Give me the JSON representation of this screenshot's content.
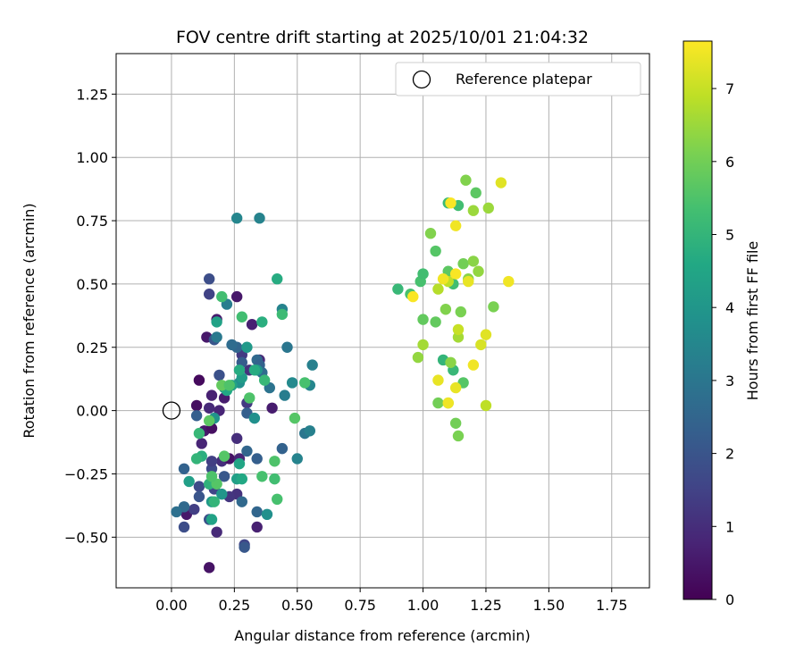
{
  "chart_data": {
    "type": "scatter",
    "title": "FOV centre drift starting at 2025/10/01 21:04:32",
    "xlabel": "Angular distance from reference (arcmin)",
    "ylabel": "Rotation from reference (arcmin)",
    "xlim": [
      -0.22,
      1.9
    ],
    "ylim": [
      -0.7,
      1.41
    ],
    "xticks": [
      0.0,
      0.25,
      0.5,
      0.75,
      1.0,
      1.25,
      1.5,
      1.75
    ],
    "xtick_labels": [
      "0.00",
      "0.25",
      "0.50",
      "0.75",
      "1.00",
      "1.25",
      "1.50",
      "1.75"
    ],
    "yticks": [
      -0.5,
      -0.25,
      0.0,
      0.25,
      0.5,
      0.75,
      1.0,
      1.25
    ],
    "ytick_labels": [
      "−0.50",
      "−0.25",
      "0.00",
      "0.25",
      "0.50",
      "0.75",
      "1.00",
      "1.25"
    ],
    "grid": true,
    "legend": {
      "placement": "top-right",
      "label": "Reference platepar"
    },
    "reference_point": {
      "x": 0.0,
      "y": 0.0,
      "marker": "open-circle"
    },
    "colorbar": {
      "label": "Hours from first FF file",
      "range": [
        0,
        7.65
      ],
      "ticks": [
        0,
        1,
        2,
        3,
        4,
        5,
        6,
        7
      ],
      "tick_labels": [
        "0",
        "1",
        "2",
        "3",
        "4",
        "5",
        "6",
        "7"
      ],
      "colormap": "viridis"
    },
    "series": [
      {
        "points": [
          {
            "x": 0.15,
            "y": -0.62,
            "t": 0.4
          },
          {
            "x": 0.11,
            "y": 0.12,
            "t": 0.2
          },
          {
            "x": 0.1,
            "y": 0.02,
            "t": 0.3
          },
          {
            "x": 0.14,
            "y": 0.29,
            "t": 0.5
          },
          {
            "x": 0.18,
            "y": 0.36,
            "t": 0.6
          },
          {
            "x": 0.16,
            "y": 0.06,
            "t": 0.7
          },
          {
            "x": 0.15,
            "y": 0.01,
            "t": 0.9
          },
          {
            "x": 0.13,
            "y": -0.08,
            "t": 0.5
          },
          {
            "x": 0.12,
            "y": -0.13,
            "t": 0.8
          },
          {
            "x": 0.16,
            "y": -0.07,
            "t": 0.3
          },
          {
            "x": 0.2,
            "y": -0.2,
            "t": 1.0
          },
          {
            "x": 0.23,
            "y": -0.19,
            "t": 0.4
          },
          {
            "x": 0.18,
            "y": -0.48,
            "t": 0.9
          },
          {
            "x": 0.06,
            "y": -0.41,
            "t": 0.5
          },
          {
            "x": 0.19,
            "y": 0.0,
            "t": 0.8
          },
          {
            "x": 0.21,
            "y": 0.05,
            "t": 0.6
          },
          {
            "x": 0.26,
            "y": 0.45,
            "t": 0.5
          },
          {
            "x": 0.32,
            "y": 0.34,
            "t": 0.7
          },
          {
            "x": 0.28,
            "y": 0.22,
            "t": 1.3
          },
          {
            "x": 0.31,
            "y": 0.16,
            "t": 1.1
          },
          {
            "x": 0.35,
            "y": 0.2,
            "t": 0.9
          },
          {
            "x": 0.4,
            "y": 0.01,
            "t": 0.6
          },
          {
            "x": 0.27,
            "y": -0.19,
            "t": 0.8
          },
          {
            "x": 0.34,
            "y": -0.46,
            "t": 0.7
          },
          {
            "x": 0.26,
            "y": -0.33,
            "t": 1.1
          },
          {
            "x": 0.23,
            "y": -0.34,
            "t": 1.2
          },
          {
            "x": 0.3,
            "y": 0.03,
            "t": 1.3
          },
          {
            "x": 0.26,
            "y": -0.11,
            "t": 1.0
          },
          {
            "x": 0.29,
            "y": -0.53,
            "t": 1.6
          },
          {
            "x": 0.29,
            "y": -0.54,
            "t": 2.1
          },
          {
            "x": 0.15,
            "y": 0.52,
            "t": 1.8
          },
          {
            "x": 0.15,
            "y": 0.46,
            "t": 1.5
          },
          {
            "x": 0.17,
            "y": 0.28,
            "t": 2.0
          },
          {
            "x": 0.19,
            "y": 0.14,
            "t": 1.9
          },
          {
            "x": 0.16,
            "y": -0.23,
            "t": 1.7
          },
          {
            "x": 0.11,
            "y": -0.3,
            "t": 1.7
          },
          {
            "x": 0.09,
            "y": -0.39,
            "t": 1.4
          },
          {
            "x": 0.05,
            "y": -0.46,
            "t": 1.8
          },
          {
            "x": 0.17,
            "y": -0.31,
            "t": 1.6
          },
          {
            "x": 0.15,
            "y": -0.43,
            "t": 1.9
          },
          {
            "x": 0.1,
            "y": -0.02,
            "t": 2.3
          },
          {
            "x": 0.11,
            "y": -0.34,
            "t": 2.0
          },
          {
            "x": 0.05,
            "y": -0.23,
            "t": 2.4
          },
          {
            "x": 0.05,
            "y": -0.38,
            "t": 2.6
          },
          {
            "x": 0.02,
            "y": -0.4,
            "t": 2.8
          },
          {
            "x": 0.21,
            "y": -0.26,
            "t": 2.1
          },
          {
            "x": 0.16,
            "y": -0.2,
            "t": 1.4
          },
          {
            "x": 0.26,
            "y": 0.25,
            "t": 2.5
          },
          {
            "x": 0.24,
            "y": 0.26,
            "t": 2.7
          },
          {
            "x": 0.28,
            "y": 0.19,
            "t": 2.2
          },
          {
            "x": 0.34,
            "y": 0.2,
            "t": 2.6
          },
          {
            "x": 0.35,
            "y": 0.18,
            "t": 2.4
          },
          {
            "x": 0.36,
            "y": 0.15,
            "t": 2.7
          },
          {
            "x": 0.3,
            "y": -0.01,
            "t": 2.3
          },
          {
            "x": 0.3,
            "y": -0.16,
            "t": 2.5
          },
          {
            "x": 0.34,
            "y": -0.19,
            "t": 2.3
          },
          {
            "x": 0.34,
            "y": -0.4,
            "t": 2.5
          },
          {
            "x": 0.28,
            "y": -0.36,
            "t": 2.6
          },
          {
            "x": 0.44,
            "y": -0.15,
            "t": 2.4
          },
          {
            "x": 0.39,
            "y": 0.09,
            "t": 2.9
          },
          {
            "x": 0.22,
            "y": 0.42,
            "t": 3.2
          },
          {
            "x": 0.26,
            "y": 0.76,
            "t": 3.5
          },
          {
            "x": 0.35,
            "y": 0.76,
            "t": 3.4
          },
          {
            "x": 0.44,
            "y": 0.4,
            "t": 3.4
          },
          {
            "x": 0.46,
            "y": 0.25,
            "t": 3.0
          },
          {
            "x": 0.45,
            "y": 0.06,
            "t": 3.2
          },
          {
            "x": 0.48,
            "y": 0.11,
            "t": 3.6
          },
          {
            "x": 0.5,
            "y": -0.19,
            "t": 3.4
          },
          {
            "x": 0.53,
            "y": -0.09,
            "t": 3.0
          },
          {
            "x": 0.55,
            "y": -0.08,
            "t": 3.3
          },
          {
            "x": 0.56,
            "y": 0.18,
            "t": 3.3
          },
          {
            "x": 0.55,
            "y": 0.1,
            "t": 3.5
          },
          {
            "x": 0.38,
            "y": -0.41,
            "t": 3.8
          },
          {
            "x": 0.18,
            "y": 0.29,
            "t": 3.1
          },
          {
            "x": 0.21,
            "y": 0.09,
            "t": 3.7
          },
          {
            "x": 0.17,
            "y": -0.03,
            "t": 3.9
          },
          {
            "x": 0.27,
            "y": 0.11,
            "t": 3.8
          },
          {
            "x": 0.28,
            "y": 0.13,
            "t": 4.2
          },
          {
            "x": 0.34,
            "y": 0.16,
            "t": 4.0
          },
          {
            "x": 0.33,
            "y": -0.03,
            "t": 3.8
          },
          {
            "x": 0.3,
            "y": 0.25,
            "t": 4.1
          },
          {
            "x": 0.07,
            "y": -0.28,
            "t": 4.3
          },
          {
            "x": 0.16,
            "y": -0.36,
            "t": 4.1
          },
          {
            "x": 0.16,
            "y": -0.43,
            "t": 4.4
          },
          {
            "x": 0.2,
            "y": -0.33,
            "t": 4.0
          },
          {
            "x": 0.26,
            "y": -0.27,
            "t": 4.3
          },
          {
            "x": 0.27,
            "y": -0.21,
            "t": 4.5
          },
          {
            "x": 0.24,
            "y": 0.1,
            "t": 4.4
          },
          {
            "x": 0.22,
            "y": 0.08,
            "t": 4.6
          },
          {
            "x": 0.18,
            "y": 0.35,
            "t": 4.4
          },
          {
            "x": 0.12,
            "y": -0.18,
            "t": 4.8
          },
          {
            "x": 0.1,
            "y": -0.19,
            "t": 5.0
          },
          {
            "x": 0.11,
            "y": -0.09,
            "t": 5.1
          },
          {
            "x": 0.15,
            "y": -0.29,
            "t": 4.9
          },
          {
            "x": 0.17,
            "y": -0.36,
            "t": 5.0
          },
          {
            "x": 0.28,
            "y": -0.27,
            "t": 4.6
          },
          {
            "x": 0.27,
            "y": 0.16,
            "t": 4.7
          },
          {
            "x": 0.33,
            "y": 0.16,
            "t": 4.7
          },
          {
            "x": 0.36,
            "y": 0.35,
            "t": 4.8
          },
          {
            "x": 0.37,
            "y": 0.12,
            "t": 5.1
          },
          {
            "x": 0.42,
            "y": 0.52,
            "t": 4.7
          },
          {
            "x": 0.44,
            "y": 0.38,
            "t": 5.2
          },
          {
            "x": 0.2,
            "y": 0.45,
            "t": 5.3
          },
          {
            "x": 0.28,
            "y": 0.37,
            "t": 5.3
          },
          {
            "x": 0.31,
            "y": 0.05,
            "t": 5.5
          },
          {
            "x": 0.36,
            "y": -0.26,
            "t": 5.4
          },
          {
            "x": 0.41,
            "y": -0.2,
            "t": 5.5
          },
          {
            "x": 0.41,
            "y": -0.27,
            "t": 5.3
          },
          {
            "x": 0.42,
            "y": -0.35,
            "t": 5.4
          },
          {
            "x": 0.49,
            "y": -0.03,
            "t": 5.6
          },
          {
            "x": 0.53,
            "y": 0.11,
            "t": 5.4
          },
          {
            "x": 0.18,
            "y": -0.29,
            "t": 5.6
          },
          {
            "x": 0.16,
            "y": -0.26,
            "t": 5.5
          },
          {
            "x": 0.21,
            "y": -0.18,
            "t": 5.6
          },
          {
            "x": 0.15,
            "y": -0.04,
            "t": 5.7
          },
          {
            "x": 0.2,
            "y": 0.1,
            "t": 5.8
          },
          {
            "x": 0.23,
            "y": 0.1,
            "t": 5.5
          },
          {
            "x": 0.9,
            "y": 0.48,
            "t": 5.1
          },
          {
            "x": 0.95,
            "y": 0.46,
            "t": 5.4
          },
          {
            "x": 0.99,
            "y": 0.51,
            "t": 5.4
          },
          {
            "x": 1.0,
            "y": 0.54,
            "t": 5.3
          },
          {
            "x": 1.0,
            "y": 0.36,
            "t": 5.8
          },
          {
            "x": 1.05,
            "y": 0.63,
            "t": 5.6
          },
          {
            "x": 1.05,
            "y": 0.35,
            "t": 5.8
          },
          {
            "x": 1.08,
            "y": 0.2,
            "t": 5.0
          },
          {
            "x": 1.1,
            "y": 0.55,
            "t": 5.7
          },
          {
            "x": 1.12,
            "y": 0.5,
            "t": 5.3
          },
          {
            "x": 1.12,
            "y": 0.16,
            "t": 5.1
          },
          {
            "x": 1.1,
            "y": 0.82,
            "t": 5.2
          },
          {
            "x": 1.14,
            "y": 0.81,
            "t": 5.3
          },
          {
            "x": 1.16,
            "y": 0.11,
            "t": 5.6
          },
          {
            "x": 1.21,
            "y": 0.86,
            "t": 5.7
          },
          {
            "x": 1.13,
            "y": -0.05,
            "t": 6.0
          },
          {
            "x": 1.14,
            "y": -0.1,
            "t": 6.1
          },
          {
            "x": 1.1,
            "y": 0.03,
            "t": 6.3
          },
          {
            "x": 1.06,
            "y": 0.03,
            "t": 6.0
          },
          {
            "x": 1.03,
            "y": 0.7,
            "t": 6.2
          },
          {
            "x": 1.09,
            "y": 0.4,
            "t": 6.2
          },
          {
            "x": 1.11,
            "y": 0.19,
            "t": 6.3
          },
          {
            "x": 1.15,
            "y": 0.39,
            "t": 6.1
          },
          {
            "x": 1.16,
            "y": 0.58,
            "t": 6.0
          },
          {
            "x": 1.17,
            "y": 0.91,
            "t": 6.2
          },
          {
            "x": 1.18,
            "y": 0.52,
            "t": 6.3
          },
          {
            "x": 1.2,
            "y": 0.79,
            "t": 6.5
          },
          {
            "x": 1.2,
            "y": 0.59,
            "t": 6.3
          },
          {
            "x": 1.22,
            "y": 0.55,
            "t": 6.4
          },
          {
            "x": 1.26,
            "y": 0.8,
            "t": 6.5
          },
          {
            "x": 1.28,
            "y": 0.41,
            "t": 6.1
          },
          {
            "x": 0.98,
            "y": 0.21,
            "t": 6.4
          },
          {
            "x": 1.0,
            "y": 0.26,
            "t": 6.6
          },
          {
            "x": 1.06,
            "y": 0.48,
            "t": 6.8
          },
          {
            "x": 1.1,
            "y": 0.51,
            "t": 6.9
          },
          {
            "x": 1.14,
            "y": 0.29,
            "t": 6.6
          },
          {
            "x": 1.14,
            "y": 0.32,
            "t": 7.0
          },
          {
            "x": 1.25,
            "y": 0.02,
            "t": 6.9
          },
          {
            "x": 1.23,
            "y": 0.26,
            "t": 7.2
          },
          {
            "x": 1.25,
            "y": 0.3,
            "t": 7.3
          },
          {
            "x": 1.31,
            "y": 0.9,
            "t": 7.3
          },
          {
            "x": 1.34,
            "y": 0.51,
            "t": 7.5
          },
          {
            "x": 0.96,
            "y": 0.45,
            "t": 7.6
          },
          {
            "x": 1.08,
            "y": 0.52,
            "t": 7.5
          },
          {
            "x": 1.06,
            "y": 0.12,
            "t": 7.4
          },
          {
            "x": 1.1,
            "y": 0.03,
            "t": 7.5
          },
          {
            "x": 1.11,
            "y": 0.82,
            "t": 7.6
          },
          {
            "x": 1.13,
            "y": 0.73,
            "t": 7.5
          },
          {
            "x": 1.13,
            "y": 0.54,
            "t": 7.6
          },
          {
            "x": 1.13,
            "y": 0.09,
            "t": 7.4
          },
          {
            "x": 1.18,
            "y": 0.51,
            "t": 7.4
          },
          {
            "x": 1.2,
            "y": 0.18,
            "t": 7.5
          }
        ]
      }
    ]
  }
}
